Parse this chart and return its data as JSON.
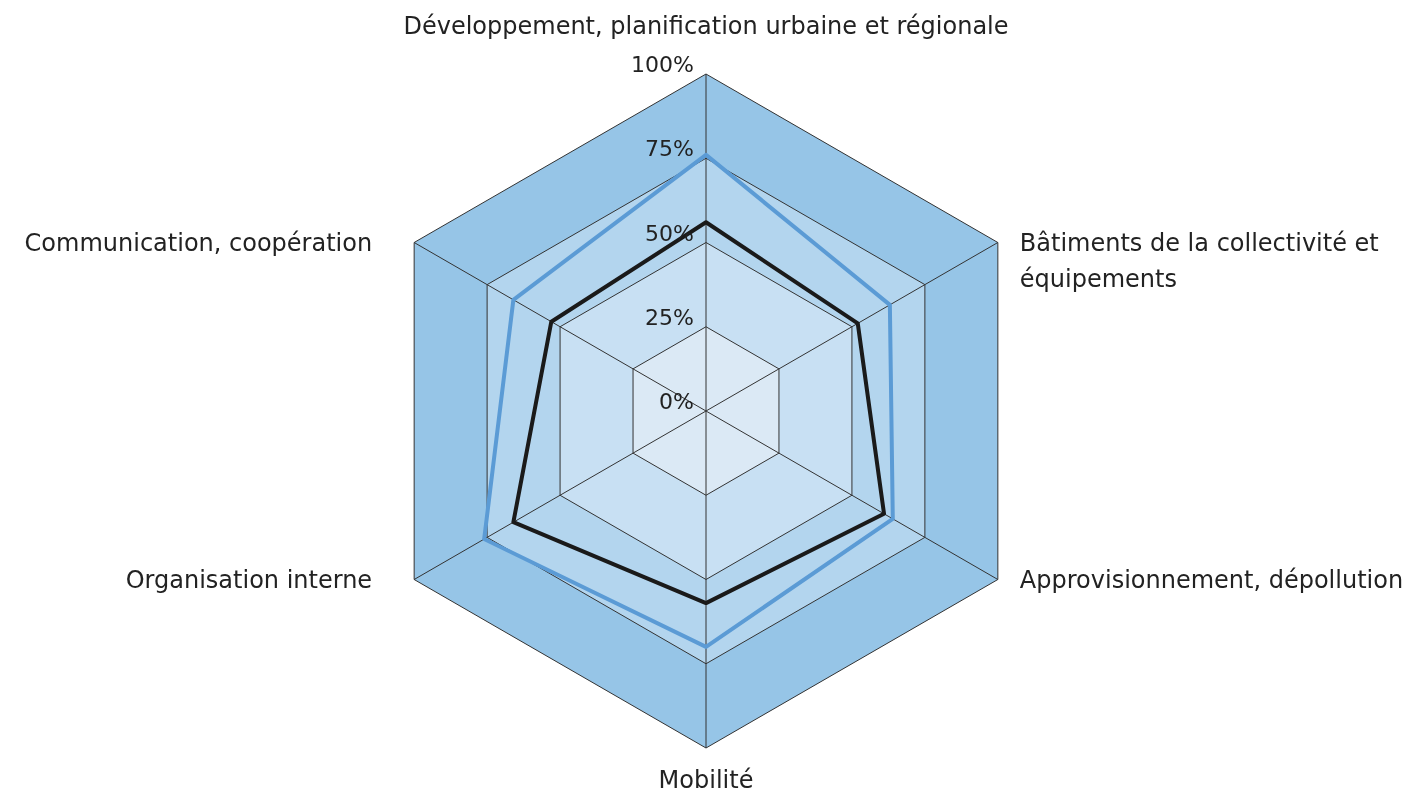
{
  "chart_data": {
    "type": "radar",
    "categories": [
      "Développement, planification urbaine et régionale",
      "Bâtiments de la collectivité et\néquipements",
      "Approvisionnement, dépollution",
      "Mobilité",
      "Organisation interne",
      "Communication, coopération"
    ],
    "series": [
      {
        "color": "#5b9bd5",
        "values": [
          76,
          63,
          64,
          70,
          76,
          66
        ]
      },
      {
        "color": "#1a1a1a",
        "values": [
          56,
          52,
          61,
          57,
          66,
          53
        ]
      }
    ],
    "ylim": [
      0,
      100
    ],
    "yticks": [
      {
        "value": 0,
        "label": "0%"
      },
      {
        "value": 25,
        "label": "25%"
      },
      {
        "value": 50,
        "label": "50%"
      },
      {
        "value": 75,
        "label": "75%"
      },
      {
        "value": 100,
        "label": "100%"
      }
    ],
    "grid": true
  }
}
